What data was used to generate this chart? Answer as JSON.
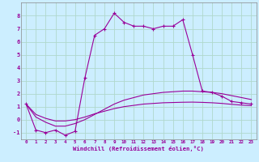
{
  "xlabel": "Windchill (Refroidissement éolien,°C)",
  "background_color": "#cceeff",
  "grid_color": "#b0d8cc",
  "line_color": "#990099",
  "x_hours": [
    0,
    1,
    2,
    3,
    4,
    5,
    6,
    7,
    8,
    9,
    10,
    11,
    12,
    13,
    14,
    15,
    16,
    17,
    18,
    19,
    20,
    21,
    22,
    23
  ],
  "temp_line": [
    1.2,
    -0.8,
    -1.0,
    -0.8,
    -1.2,
    -0.9,
    3.2,
    6.5,
    7.0,
    8.2,
    7.5,
    7.2,
    7.2,
    7.0,
    7.2,
    7.2,
    7.7,
    5.0,
    2.2,
    2.1,
    1.8,
    1.4,
    1.3,
    1.2
  ],
  "smooth_line1": [
    1.2,
    0.2,
    -0.2,
    -0.5,
    -0.5,
    -0.3,
    0.0,
    0.4,
    0.8,
    1.2,
    1.5,
    1.7,
    1.9,
    2.0,
    2.1,
    2.15,
    2.2,
    2.2,
    2.15,
    2.1,
    2.0,
    1.85,
    1.7,
    1.55
  ],
  "smooth_line2": [
    1.2,
    0.4,
    0.1,
    -0.1,
    -0.1,
    0.0,
    0.2,
    0.45,
    0.65,
    0.85,
    1.0,
    1.1,
    1.2,
    1.25,
    1.3,
    1.32,
    1.34,
    1.35,
    1.33,
    1.3,
    1.25,
    1.18,
    1.12,
    1.08
  ],
  "ylim": [
    -1.5,
    9.0
  ],
  "xlim": [
    -0.5,
    23.5
  ],
  "yticks": [
    -1,
    0,
    1,
    2,
    3,
    4,
    5,
    6,
    7,
    8
  ]
}
